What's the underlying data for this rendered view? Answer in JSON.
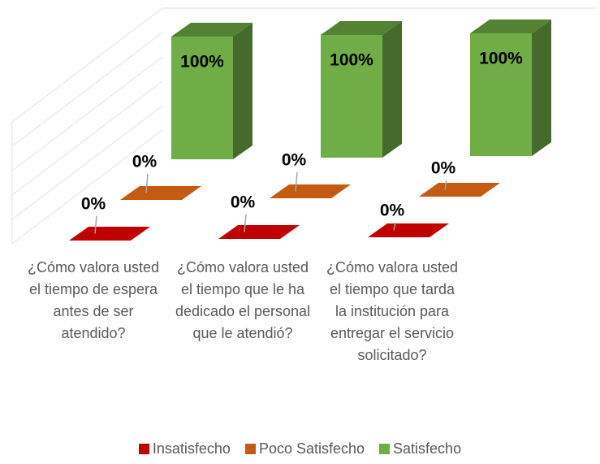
{
  "chart_data": {
    "type": "bar3d",
    "categories": [
      "¿Cómo valora usted el tiempo de espera antes de ser atendido?",
      "¿Cómo valora usted el tiempo que le ha dedicado el personal que le atendió?",
      "¿Cómo valora usted el tiempo que tarda la institución para entregar el servicio solicitado?"
    ],
    "series": [
      {
        "name": "Insatisfecho",
        "color": "#c00000",
        "values": [
          0,
          0,
          0
        ],
        "value_labels": [
          "0%",
          "0%",
          "0%"
        ]
      },
      {
        "name": "Poco Satisfecho",
        "color": "#c55a11",
        "values": [
          0,
          0,
          0
        ],
        "value_labels": [
          "0%",
          "0%",
          "0%"
        ]
      },
      {
        "name": "Satisfecho",
        "color": "#70ad47",
        "values": [
          100,
          100,
          100
        ],
        "value_labels": [
          "100%",
          "100%",
          "100%"
        ]
      }
    ],
    "legend": "bottom"
  }
}
